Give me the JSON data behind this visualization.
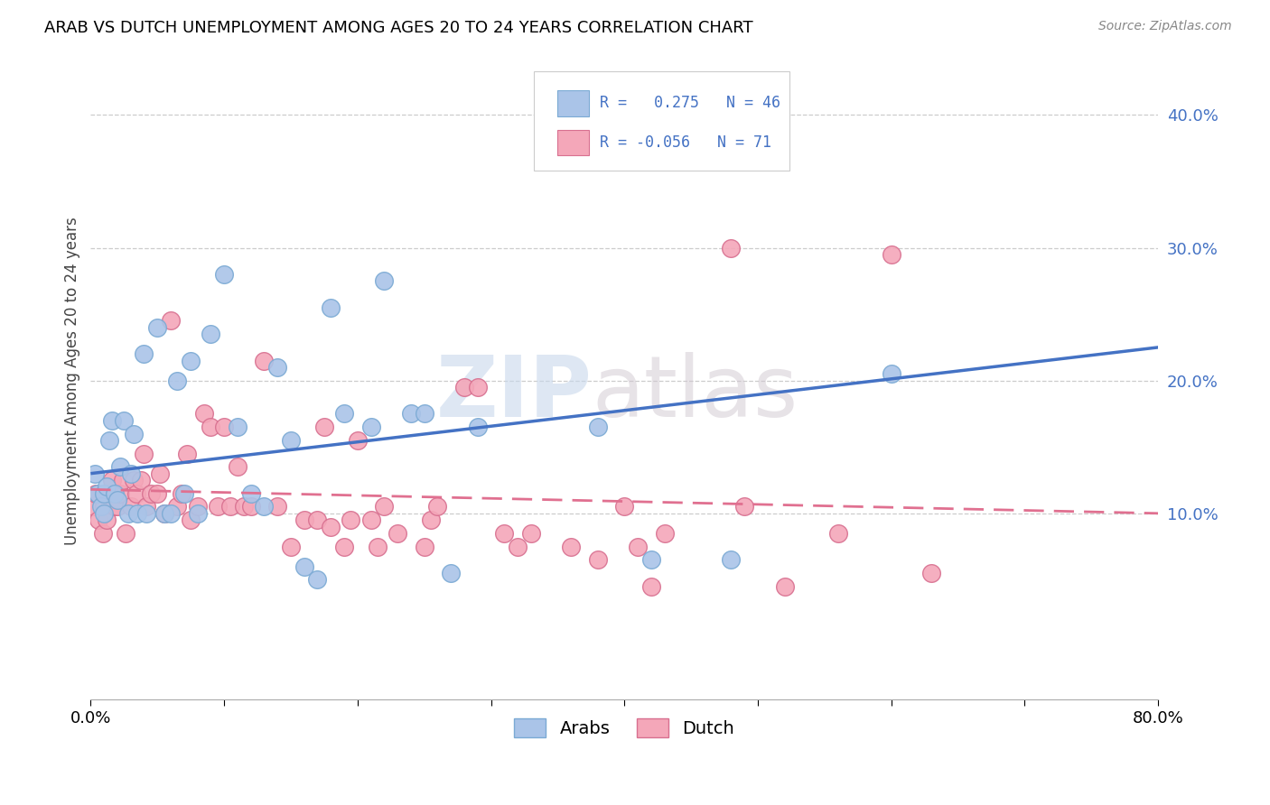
{
  "title": "ARAB VS DUTCH UNEMPLOYMENT AMONG AGES 20 TO 24 YEARS CORRELATION CHART",
  "source": "Source: ZipAtlas.com",
  "ylabel": "Unemployment Among Ages 20 to 24 years",
  "background_color": "#ffffff",
  "grid_color": "#cccccc",
  "watermark_zip": "ZIP",
  "watermark_atlas": "atlas",
  "xlim": [
    0.0,
    0.8
  ],
  "ylim": [
    -0.04,
    0.44
  ],
  "yticks": [
    0.1,
    0.2,
    0.3,
    0.4
  ],
  "ytick_labels": [
    "10.0%",
    "20.0%",
    "30.0%",
    "40.0%"
  ],
  "xtick_positions": [
    0.0,
    0.1,
    0.2,
    0.3,
    0.4,
    0.5,
    0.6,
    0.7,
    0.8
  ],
  "xtick_labels": [
    "0.0%",
    "",
    "",
    "",
    "",
    "",
    "",
    "",
    "80.0%"
  ],
  "arab_R": 0.275,
  "arab_N": 46,
  "dutch_R": -0.056,
  "dutch_N": 71,
  "arab_color": "#aac4e8",
  "dutch_color": "#f4a7b9",
  "arab_line_color": "#4472c4",
  "dutch_line_color": "#e07090",
  "arab_edge_color": "#7baad4",
  "dutch_edge_color": "#d87090",
  "arab_points_x": [
    0.003,
    0.005,
    0.008,
    0.01,
    0.01,
    0.012,
    0.014,
    0.016,
    0.018,
    0.02,
    0.022,
    0.025,
    0.028,
    0.03,
    0.032,
    0.035,
    0.04,
    0.042,
    0.05,
    0.055,
    0.06,
    0.065,
    0.07,
    0.075,
    0.08,
    0.09,
    0.1,
    0.11,
    0.12,
    0.13,
    0.14,
    0.15,
    0.16,
    0.17,
    0.18,
    0.19,
    0.21,
    0.22,
    0.24,
    0.25,
    0.27,
    0.29,
    0.38,
    0.42,
    0.48,
    0.6
  ],
  "arab_points_y": [
    0.13,
    0.115,
    0.105,
    0.115,
    0.1,
    0.12,
    0.155,
    0.17,
    0.115,
    0.11,
    0.135,
    0.17,
    0.1,
    0.13,
    0.16,
    0.1,
    0.22,
    0.1,
    0.24,
    0.1,
    0.1,
    0.2,
    0.115,
    0.215,
    0.1,
    0.235,
    0.28,
    0.165,
    0.115,
    0.105,
    0.21,
    0.155,
    0.06,
    0.05,
    0.255,
    0.175,
    0.165,
    0.275,
    0.175,
    0.175,
    0.055,
    0.165,
    0.165,
    0.065,
    0.065,
    0.205
  ],
  "dutch_points_x": [
    0.002,
    0.004,
    0.006,
    0.009,
    0.01,
    0.012,
    0.014,
    0.016,
    0.018,
    0.02,
    0.022,
    0.024,
    0.026,
    0.03,
    0.032,
    0.034,
    0.038,
    0.04,
    0.042,
    0.045,
    0.05,
    0.052,
    0.055,
    0.06,
    0.065,
    0.068,
    0.072,
    0.075,
    0.08,
    0.085,
    0.09,
    0.095,
    0.1,
    0.105,
    0.11,
    0.115,
    0.12,
    0.13,
    0.14,
    0.15,
    0.16,
    0.17,
    0.175,
    0.18,
    0.19,
    0.195,
    0.2,
    0.21,
    0.215,
    0.22,
    0.23,
    0.25,
    0.255,
    0.26,
    0.28,
    0.29,
    0.31,
    0.32,
    0.33,
    0.36,
    0.38,
    0.4,
    0.41,
    0.42,
    0.43,
    0.48,
    0.49,
    0.52,
    0.56,
    0.6,
    0.63
  ],
  "dutch_points_y": [
    0.105,
    0.115,
    0.095,
    0.085,
    0.105,
    0.095,
    0.115,
    0.125,
    0.105,
    0.105,
    0.115,
    0.125,
    0.085,
    0.105,
    0.125,
    0.115,
    0.125,
    0.145,
    0.105,
    0.115,
    0.115,
    0.13,
    0.1,
    0.245,
    0.105,
    0.115,
    0.145,
    0.095,
    0.105,
    0.175,
    0.165,
    0.105,
    0.165,
    0.105,
    0.135,
    0.105,
    0.105,
    0.215,
    0.105,
    0.075,
    0.095,
    0.095,
    0.165,
    0.09,
    0.075,
    0.095,
    0.155,
    0.095,
    0.075,
    0.105,
    0.085,
    0.075,
    0.095,
    0.105,
    0.195,
    0.195,
    0.085,
    0.075,
    0.085,
    0.075,
    0.065,
    0.105,
    0.075,
    0.045,
    0.085,
    0.3,
    0.105,
    0.045,
    0.085,
    0.295,
    0.055
  ],
  "arab_trend_x": [
    0.0,
    0.8
  ],
  "arab_trend_y": [
    0.13,
    0.225
  ],
  "dutch_trend_x": [
    0.0,
    0.8
  ],
  "dutch_trend_y": [
    0.118,
    0.1
  ]
}
